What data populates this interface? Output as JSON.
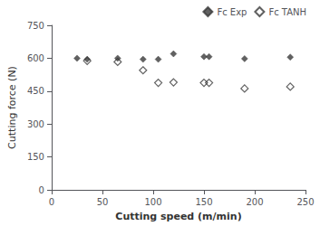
{
  "chart_data": {
    "type": "scatter",
    "xlabel": "Cutting speed (m/min)",
    "ylabel": "Cutting force (N)",
    "xlim": [
      0,
      250
    ],
    "ylim": [
      0,
      750
    ],
    "xticks": [
      0,
      50,
      100,
      150,
      200,
      250
    ],
    "yticks": [
      0,
      150,
      300,
      450,
      600,
      750
    ],
    "grid": false,
    "legend": "upper right",
    "series": [
      {
        "name": "Fc Exp",
        "color": "#3a3a3a",
        "marker": "diamond",
        "x": [
          25,
          35,
          65,
          90,
          105,
          120,
          150,
          155,
          190,
          235
        ],
        "values": [
          600,
          595,
          600,
          595,
          595,
          620,
          607,
          607,
          598,
          605
        ]
      },
      {
        "name": "Fc TANH",
        "color": "#3a3a3a",
        "marker": "diamond-open",
        "x": [
          35,
          65,
          90,
          105,
          120,
          150,
          155,
          190,
          235
        ],
        "values": [
          588,
          583,
          545,
          488,
          490,
          488,
          488,
          462,
          470
        ]
      }
    ]
  }
}
